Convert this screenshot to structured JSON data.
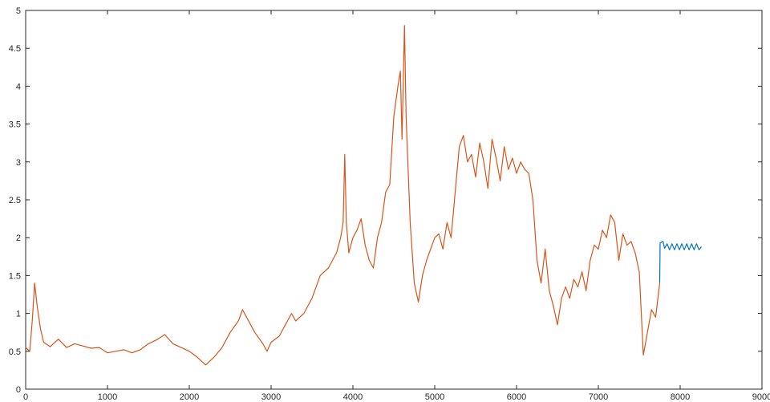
{
  "chart_data": {
    "type": "line",
    "title": "",
    "xlabel": "",
    "ylabel": "",
    "xlim": [
      0,
      9000
    ],
    "ylim": [
      0,
      5
    ],
    "grid": false,
    "x_ticks": [
      0,
      1000,
      2000,
      3000,
      4000,
      5000,
      6000,
      7000,
      8000,
      9000
    ],
    "x_tick_labels": [
      "0",
      "1000",
      "2000",
      "3000",
      "4000",
      "5000",
      "6000",
      "7000",
      "8000",
      "9000"
    ],
    "y_ticks": [
      0,
      0.5,
      1,
      1.5,
      2,
      2.5,
      3,
      3.5,
      4,
      4.5,
      5
    ],
    "y_tick_labels": [
      "0",
      "0.5",
      "1",
      "1.5",
      "2",
      "2.5",
      "3",
      "3.5",
      "4",
      "4.5",
      "5"
    ],
    "series": [
      {
        "color": "#d9541a",
        "points": [
          [
            0,
            0.55
          ],
          [
            50,
            0.5
          ],
          [
            80,
            0.9
          ],
          [
            110,
            1.4
          ],
          [
            140,
            1.1
          ],
          [
            180,
            0.8
          ],
          [
            220,
            0.62
          ],
          [
            300,
            0.56
          ],
          [
            400,
            0.66
          ],
          [
            500,
            0.55
          ],
          [
            600,
            0.6
          ],
          [
            700,
            0.57
          ],
          [
            800,
            0.54
          ],
          [
            900,
            0.55
          ],
          [
            1000,
            0.48
          ],
          [
            1100,
            0.5
          ],
          [
            1200,
            0.52
          ],
          [
            1300,
            0.48
          ],
          [
            1400,
            0.52
          ],
          [
            1500,
            0.6
          ],
          [
            1600,
            0.65
          ],
          [
            1700,
            0.72
          ],
          [
            1800,
            0.6
          ],
          [
            1900,
            0.55
          ],
          [
            2000,
            0.5
          ],
          [
            2100,
            0.42
          ],
          [
            2200,
            0.32
          ],
          [
            2300,
            0.42
          ],
          [
            2400,
            0.55
          ],
          [
            2500,
            0.75
          ],
          [
            2600,
            0.9
          ],
          [
            2650,
            1.05
          ],
          [
            2700,
            0.95
          ],
          [
            2800,
            0.75
          ],
          [
            2900,
            0.6
          ],
          [
            2950,
            0.5
          ],
          [
            3000,
            0.62
          ],
          [
            3100,
            0.7
          ],
          [
            3200,
            0.9
          ],
          [
            3250,
            1.0
          ],
          [
            3300,
            0.9
          ],
          [
            3400,
            1.0
          ],
          [
            3500,
            1.2
          ],
          [
            3600,
            1.5
          ],
          [
            3700,
            1.6
          ],
          [
            3800,
            1.8
          ],
          [
            3850,
            2.0
          ],
          [
            3880,
            2.2
          ],
          [
            3900,
            3.1
          ],
          [
            3920,
            2.2
          ],
          [
            3950,
            1.8
          ],
          [
            4000,
            2.0
          ],
          [
            4050,
            2.1
          ],
          [
            4100,
            2.25
          ],
          [
            4150,
            1.9
          ],
          [
            4200,
            1.7
          ],
          [
            4250,
            1.6
          ],
          [
            4300,
            2.0
          ],
          [
            4350,
            2.2
          ],
          [
            4400,
            2.6
          ],
          [
            4450,
            2.7
          ],
          [
            4500,
            3.6
          ],
          [
            4550,
            4.0
          ],
          [
            4580,
            4.2
          ],
          [
            4600,
            3.3
          ],
          [
            4630,
            4.8
          ],
          [
            4650,
            3.6
          ],
          [
            4700,
            2.2
          ],
          [
            4750,
            1.4
          ],
          [
            4800,
            1.15
          ],
          [
            4850,
            1.5
          ],
          [
            4900,
            1.7
          ],
          [
            5000,
            2.0
          ],
          [
            5050,
            2.05
          ],
          [
            5100,
            1.85
          ],
          [
            5150,
            2.2
          ],
          [
            5200,
            2.0
          ],
          [
            5250,
            2.6
          ],
          [
            5300,
            3.2
          ],
          [
            5350,
            3.35
          ],
          [
            5400,
            3.0
          ],
          [
            5450,
            3.1
          ],
          [
            5500,
            2.8
          ],
          [
            5550,
            3.25
          ],
          [
            5600,
            3.0
          ],
          [
            5650,
            2.65
          ],
          [
            5700,
            3.3
          ],
          [
            5750,
            3.05
          ],
          [
            5800,
            2.75
          ],
          [
            5850,
            3.2
          ],
          [
            5900,
            2.9
          ],
          [
            5950,
            3.05
          ],
          [
            6000,
            2.85
          ],
          [
            6050,
            3.0
          ],
          [
            6100,
            2.9
          ],
          [
            6150,
            2.85
          ],
          [
            6200,
            2.5
          ],
          [
            6250,
            1.7
          ],
          [
            6300,
            1.4
          ],
          [
            6350,
            1.85
          ],
          [
            6400,
            1.3
          ],
          [
            6450,
            1.1
          ],
          [
            6500,
            0.85
          ],
          [
            6550,
            1.2
          ],
          [
            6600,
            1.35
          ],
          [
            6650,
            1.2
          ],
          [
            6700,
            1.45
          ],
          [
            6750,
            1.35
          ],
          [
            6800,
            1.55
          ],
          [
            6850,
            1.3
          ],
          [
            6900,
            1.7
          ],
          [
            6950,
            1.9
          ],
          [
            7000,
            1.85
          ],
          [
            7050,
            2.1
          ],
          [
            7100,
            2.0
          ],
          [
            7150,
            2.3
          ],
          [
            7200,
            2.2
          ],
          [
            7250,
            1.7
          ],
          [
            7300,
            2.05
          ],
          [
            7350,
            1.9
          ],
          [
            7400,
            1.95
          ],
          [
            7450,
            1.8
          ],
          [
            7500,
            1.55
          ],
          [
            7550,
            0.45
          ],
          [
            7600,
            0.75
          ],
          [
            7650,
            1.05
          ],
          [
            7700,
            0.95
          ],
          [
            7750,
            1.4
          ]
        ]
      },
      {
        "color": "#0072bd",
        "points": [
          [
            7750,
            1.4
          ],
          [
            7755,
            1.93
          ],
          [
            7790,
            1.95
          ],
          [
            7810,
            1.86
          ],
          [
            7840,
            1.92
          ],
          [
            7870,
            1.84
          ],
          [
            7900,
            1.92
          ],
          [
            7930,
            1.84
          ],
          [
            7960,
            1.92
          ],
          [
            7990,
            1.84
          ],
          [
            8020,
            1.92
          ],
          [
            8050,
            1.84
          ],
          [
            8080,
            1.92
          ],
          [
            8110,
            1.84
          ],
          [
            8140,
            1.92
          ],
          [
            8170,
            1.84
          ],
          [
            8200,
            1.92
          ],
          [
            8230,
            1.84
          ],
          [
            8260,
            1.88
          ]
        ]
      }
    ]
  }
}
